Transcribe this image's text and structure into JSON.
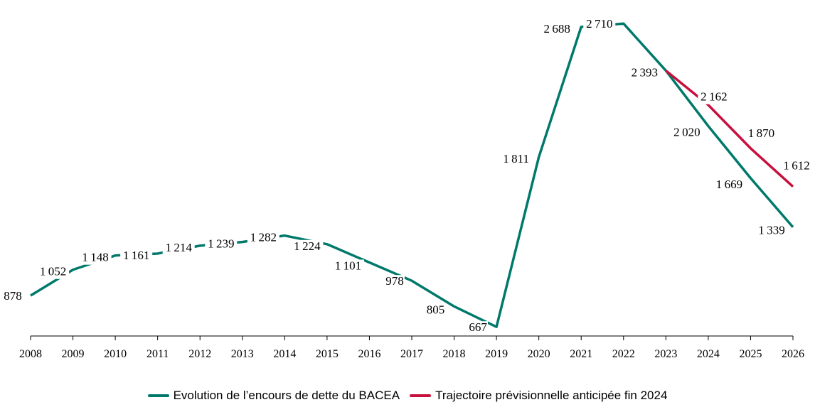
{
  "chart_data": {
    "type": "line",
    "x": [
      2008,
      2009,
      2010,
      2011,
      2012,
      2013,
      2014,
      2015,
      2016,
      2017,
      2018,
      2019,
      2020,
      2021,
      2022,
      2023,
      2024,
      2025,
      2026
    ],
    "series": [
      {
        "name": "Evolution de l’encours de dette du BACEA",
        "color": "#00796B",
        "x": [
          2008,
          2009,
          2010,
          2011,
          2012,
          2013,
          2014,
          2015,
          2016,
          2017,
          2018,
          2019,
          2020,
          2021,
          2022,
          2023,
          2024,
          2025,
          2026
        ],
        "values": [
          878,
          1052,
          1148,
          1161,
          1214,
          1239,
          1282,
          1224,
          1101,
          978,
          805,
          667,
          1811,
          2688,
          2710,
          2393,
          2020,
          1669,
          1339
        ]
      },
      {
        "name": "Trajectoire prévisionnelle anticipée fin 2024",
        "color": "#C8103E",
        "x": [
          2023,
          2024,
          2025,
          2026
        ],
        "values": [
          2393,
          2162,
          1870,
          1612
        ]
      }
    ],
    "title": "",
    "xlabel": "",
    "ylabel": "",
    "grid": false,
    "legend": "bottom",
    "data_labels": true
  }
}
